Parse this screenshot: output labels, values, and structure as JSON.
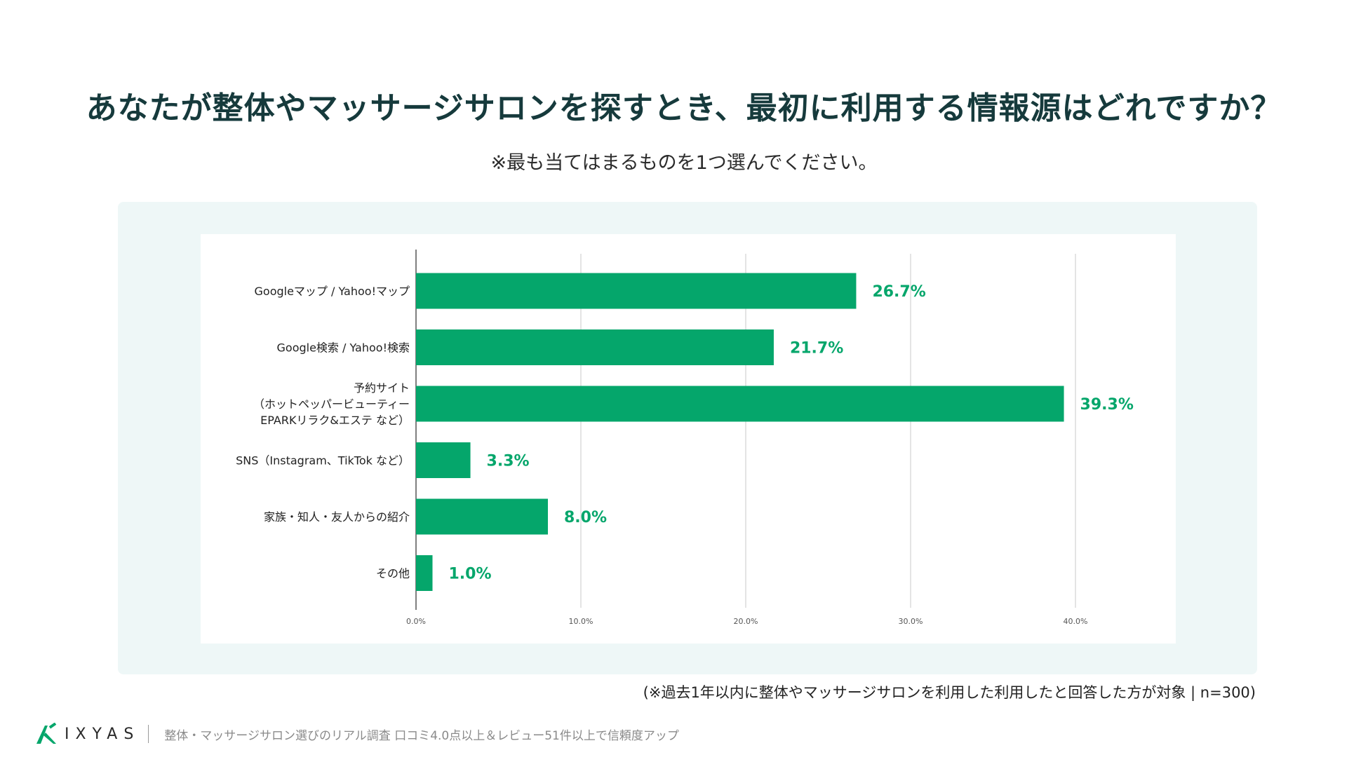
{
  "title": "あなたが整体やマッサージサロンを探すとき、最初に利用する情報源はどれですか？",
  "subtitle": "※最も当てはまるものを1つ選んでください。",
  "footnote": "(※過去1年以内に整体やマッサージサロンを利用した利用したと回答した方が対象 | n=300)",
  "brand": {
    "logo_text": "IXYAS",
    "tagline": "整体・マッサージサロン選びのリアル調査 口コミ4.0点以上＆レビュー51件以上で信頼度アップ"
  },
  "colors": {
    "bar": "#05a66b",
    "label": "#05a66b",
    "title": "#163a3c",
    "grid": "#dcdcdc"
  },
  "chart_data": {
    "type": "bar",
    "orientation": "horizontal",
    "categories": [
      [
        "Googleマップ / Yahoo!マップ"
      ],
      [
        "Google検索 / Yahoo!検索"
      ],
      [
        "予約サイト",
        "（ホットペッパービューティー",
        "EPARKリラク&エステ など）"
      ],
      [
        "SNS（Instagram、TikTok など）"
      ],
      [
        "家族・知人・友人からの紹介"
      ],
      [
        "その他"
      ]
    ],
    "values": [
      26.7,
      21.7,
      39.3,
      3.3,
      8.0,
      1.0
    ],
    "value_labels": [
      "26.7%",
      "21.7%",
      "39.3%",
      "3.3%",
      "8.0%",
      "1.0%"
    ],
    "xlim": [
      0,
      45
    ],
    "xticks": [
      0,
      10,
      20,
      30,
      40
    ],
    "xtick_labels": [
      "0.0%",
      "10.0%",
      "20.0%",
      "30.0%",
      "40.0%"
    ],
    "grid": true,
    "legend": "none"
  }
}
